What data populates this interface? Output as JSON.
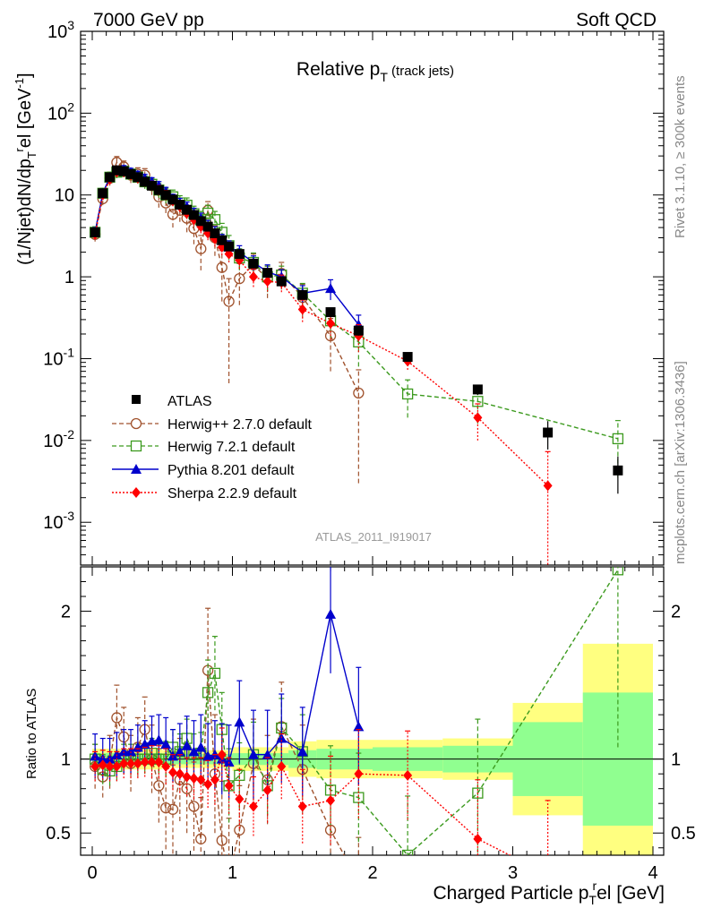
{
  "header": {
    "left": "7000 GeV pp",
    "right": "Soft QCD"
  },
  "side_labels": {
    "rivet": "Rivet 3.1.10, ≥ 300k events",
    "mcplots": "mcplots.cern.ch [arXiv:1306.3436]"
  },
  "chart_data": {
    "type": "scatter",
    "title": "Relative p",
    "title_sub": "T",
    "title_suffix": " (track jets)",
    "analysis_label": "ATLAS_2011_I919017",
    "ylabel_main": "(1/Njet)dN/dp",
    "ylabel_sub1": "T",
    "ylabel_sup1": "r",
    "ylabel_mid": "el [GeV",
    "ylabel_sup2": "-1",
    "ylabel_end": "]",
    "ylabel_ratio": "Ratio to ATLAS",
    "xlabel_main": "Charged Particle p",
    "xlabel_sub": "T",
    "xlabel_sup": "r",
    "xlabel_end": "el [GeV]",
    "xlim": [
      -0.1,
      4.1
    ],
    "ylim": [
      0.0003,
      1000
    ],
    "yscale": "log",
    "ratio_ylim": [
      0.35,
      2.3
    ],
    "x_ticks": [
      {
        "v": 0,
        "label": "0"
      },
      {
        "v": 1,
        "label": "1"
      },
      {
        "v": 2,
        "label": "2"
      },
      {
        "v": 3,
        "label": "3"
      },
      {
        "v": 4,
        "label": "4"
      }
    ],
    "y_ticks": [
      {
        "v": 0.001,
        "base": "10",
        "exp": "-3"
      },
      {
        "v": 0.01,
        "base": "10",
        "exp": "-2"
      },
      {
        "v": 0.1,
        "base": "10",
        "exp": "-1"
      },
      {
        "v": 1,
        "base": "1",
        "exp": ""
      },
      {
        "v": 10,
        "base": "10",
        "exp": ""
      },
      {
        "v": 100,
        "base": "10",
        "exp": "2"
      },
      {
        "v": 1000,
        "base": "10",
        "exp": "3"
      }
    ],
    "ratio_ticks": [
      {
        "v": 0.5,
        "label": "0.5"
      },
      {
        "v": 1,
        "label": "1"
      },
      {
        "v": 2,
        "label": "2"
      }
    ],
    "legend": {
      "position": "bottom-left"
    },
    "data_bins": [
      {
        "x": 0.02,
        "y": 3.5,
        "lo": 0.0,
        "hi": 0.04,
        "rel": 0.08
      },
      {
        "x": 0.075,
        "y": 10.5,
        "lo": 0.05,
        "hi": 0.1,
        "rel": 0.07
      },
      {
        "x": 0.125,
        "y": 16.5,
        "lo": 0.1,
        "hi": 0.15,
        "rel": 0.06
      },
      {
        "x": 0.175,
        "y": 20.0,
        "lo": 0.15,
        "hi": 0.2,
        "rel": 0.06
      },
      {
        "x": 0.225,
        "y": 19.5,
        "lo": 0.2,
        "hi": 0.25,
        "rel": 0.06
      },
      {
        "x": 0.275,
        "y": 18.0,
        "lo": 0.25,
        "hi": 0.3,
        "rel": 0.06
      },
      {
        "x": 0.325,
        "y": 16.5,
        "lo": 0.3,
        "hi": 0.35,
        "rel": 0.06
      },
      {
        "x": 0.375,
        "y": 14.5,
        "lo": 0.35,
        "hi": 0.4,
        "rel": 0.06
      },
      {
        "x": 0.425,
        "y": 13.0,
        "lo": 0.4,
        "hi": 0.45,
        "rel": 0.06
      },
      {
        "x": 0.475,
        "y": 11.5,
        "lo": 0.45,
        "hi": 0.5,
        "rel": 0.07
      },
      {
        "x": 0.525,
        "y": 10.0,
        "lo": 0.5,
        "hi": 0.55,
        "rel": 0.07
      },
      {
        "x": 0.575,
        "y": 8.8,
        "lo": 0.55,
        "hi": 0.6,
        "rel": 0.07
      },
      {
        "x": 0.625,
        "y": 7.6,
        "lo": 0.6,
        "hi": 0.65,
        "rel": 0.07
      },
      {
        "x": 0.675,
        "y": 6.6,
        "lo": 0.65,
        "hi": 0.7,
        "rel": 0.07
      },
      {
        "x": 0.725,
        "y": 5.7,
        "lo": 0.7,
        "hi": 0.75,
        "rel": 0.07
      },
      {
        "x": 0.775,
        "y": 4.8,
        "lo": 0.75,
        "hi": 0.8,
        "rel": 0.07
      },
      {
        "x": 0.825,
        "y": 4.1,
        "lo": 0.8,
        "hi": 0.85,
        "rel": 0.08
      },
      {
        "x": 0.875,
        "y": 3.4,
        "lo": 0.85,
        "hi": 0.9,
        "rel": 0.08
      },
      {
        "x": 0.925,
        "y": 2.8,
        "lo": 0.9,
        "hi": 0.95,
        "rel": 0.08
      },
      {
        "x": 0.975,
        "y": 2.35,
        "lo": 0.95,
        "hi": 1.0,
        "rel": 0.08
      },
      {
        "x": 1.05,
        "y": 1.9,
        "lo": 1.0,
        "hi": 1.1,
        "rel": 0.09
      },
      {
        "x": 1.15,
        "y": 1.45,
        "lo": 1.1,
        "hi": 1.2,
        "rel": 0.09
      },
      {
        "x": 1.25,
        "y": 1.12,
        "lo": 1.2,
        "hi": 1.3,
        "rel": 0.1
      },
      {
        "x": 1.35,
        "y": 0.88,
        "lo": 1.3,
        "hi": 1.4,
        "rel": 0.11
      },
      {
        "x": 1.5,
        "y": 0.6,
        "lo": 1.4,
        "hi": 1.6,
        "rel": 0.12
      },
      {
        "x": 1.7,
        "y": 0.37,
        "lo": 1.6,
        "hi": 1.8,
        "rel": 0.12
      },
      {
        "x": 1.9,
        "y": 0.22,
        "lo": 1.8,
        "hi": 2.0,
        "rel": 0.13
      },
      {
        "x": 2.25,
        "y": 0.105,
        "lo": 2.0,
        "hi": 2.5,
        "rel": 0.13
      },
      {
        "x": 2.75,
        "y": 0.042,
        "lo": 2.5,
        "hi": 3.0,
        "rel": 0.14
      },
      {
        "x": 3.25,
        "y": 0.0125,
        "lo": 3.0,
        "hi": 3.5,
        "rel": 0.38
      },
      {
        "x": 3.75,
        "y": 0.0043,
        "lo": 3.5,
        "hi": 4.0,
        "rel": 0.48
      }
    ],
    "ratio_bands": [
      {
        "lo": 0.0,
        "hi": 0.5,
        "inner": 0.04,
        "outer": 0.07
      },
      {
        "lo": 0.5,
        "hi": 1.0,
        "inner": 0.035,
        "outer": 0.06
      },
      {
        "lo": 1.0,
        "hi": 1.4,
        "inner": 0.04,
        "outer": 0.08
      },
      {
        "lo": 1.4,
        "hi": 1.6,
        "inner": 0.06,
        "outer": 0.12
      },
      {
        "lo": 1.6,
        "hi": 2.0,
        "inner": 0.07,
        "outer": 0.13
      },
      {
        "lo": 2.0,
        "hi": 2.5,
        "inner": 0.08,
        "outer": 0.13
      },
      {
        "lo": 2.5,
        "hi": 3.0,
        "inner": 0.09,
        "outer": 0.14
      },
      {
        "lo": 3.0,
        "hi": 3.5,
        "inner": 0.25,
        "outer": 0.38
      },
      {
        "lo": 3.5,
        "hi": 4.0,
        "inner": 0.45,
        "outer": 0.78
      }
    ],
    "series": [
      {
        "name": "ATLAS",
        "marker": "square",
        "color": "#000000",
        "dash": ""
      },
      {
        "name": "Herwig++ 2.7.0 default",
        "marker": "open-circle",
        "color": "#a0522d",
        "dash": "5,3",
        "x": [
          0.02,
          0.075,
          0.125,
          0.175,
          0.225,
          0.275,
          0.325,
          0.375,
          0.425,
          0.475,
          0.525,
          0.575,
          0.625,
          0.675,
          0.725,
          0.775,
          0.825,
          0.875,
          0.925,
          0.975,
          1.05,
          1.15,
          1.25,
          1.35,
          1.5,
          1.7,
          1.9
        ],
        "y": [
          3.3,
          9.0,
          16.0,
          25.0,
          22.0,
          17.5,
          18.0,
          17.5,
          13.0,
          9.5,
          8.0,
          5.8,
          6.5,
          5.2,
          3.9,
          2.2,
          6.5,
          3.0,
          1.3,
          0.5,
          0.95,
          1.4,
          0.95,
          1.1,
          0.56,
          0.19,
          0.038
        ],
        "err": [
          0.6,
          1.5,
          3.0,
          4.5,
          4.0,
          3.5,
          3.5,
          3.5,
          3.0,
          2.5,
          2.0,
          1.8,
          1.8,
          1.7,
          1.4,
          1.0,
          1.8,
          1.2,
          0.8,
          0.45,
          0.5,
          0.5,
          0.4,
          0.4,
          0.25,
          0.12,
          0.035
        ],
        "ratio": [
          0.95,
          0.88,
          0.98,
          1.28,
          1.15,
          0.97,
          1.08,
          1.2,
          1.0,
          0.82,
          0.67,
          0.66,
          0.86,
          0.8,
          0.68,
          0.46,
          1.6,
          0.9,
          0.45,
          0.2,
          0.52,
          0.97,
          0.86,
          1.22,
          0.93,
          0.52,
          0.17
        ],
        "ratio_err": [
          0.15,
          0.14,
          0.18,
          0.22,
          0.2,
          0.19,
          0.2,
          0.22,
          0.23,
          0.25,
          0.28,
          0.3,
          0.28,
          0.3,
          0.3,
          0.28,
          0.42,
          0.4,
          0.4,
          0.4,
          0.3,
          0.3,
          0.3,
          0.3,
          0.3,
          0.3,
          0.3
        ]
      },
      {
        "name": "Herwig 7.2.1 default",
        "marker": "open-square",
        "color": "#3c9a1e",
        "dash": "5,3",
        "x": [
          0.02,
          0.075,
          0.125,
          0.175,
          0.225,
          0.275,
          0.325,
          0.375,
          0.425,
          0.475,
          0.525,
          0.575,
          0.625,
          0.675,
          0.725,
          0.775,
          0.825,
          0.875,
          0.925,
          0.975,
          1.05,
          1.15,
          1.25,
          1.35,
          1.5,
          1.7,
          1.9,
          2.25,
          2.75,
          3.75
        ],
        "y": [
          3.5,
          10.5,
          16.5,
          19.0,
          19.5,
          18.0,
          16.5,
          14.5,
          13.5,
          11.5,
          10.0,
          9.5,
          8.0,
          7.5,
          5.9,
          5.0,
          6.0,
          5.0,
          3.5,
          2.4,
          1.7,
          1.5,
          1.0,
          1.05,
          0.63,
          0.29,
          0.16,
          0.037,
          0.03,
          0.0105
        ],
        "err": [
          0.6,
          1.6,
          2.5,
          3.0,
          3.0,
          3.0,
          2.8,
          2.6,
          2.5,
          2.3,
          2.1,
          2.0,
          1.8,
          1.7,
          1.4,
          1.3,
          1.5,
          1.3,
          1.0,
          0.8,
          0.5,
          0.45,
          0.35,
          0.3,
          0.2,
          0.12,
          0.08,
          0.018,
          0.014,
          0.007
        ],
        "ratio": [
          1.0,
          0.93,
          0.92,
          0.95,
          1.0,
          1.0,
          1.0,
          1.0,
          1.04,
          1.0,
          1.0,
          1.08,
          1.05,
          1.14,
          1.03,
          1.04,
          1.45,
          1.58,
          1.2,
          0.82,
          0.89,
          1.03,
          0.82,
          1.21,
          1.05,
          0.79,
          0.74,
          0.35,
          0.77,
          2.28
        ],
        "ratio_err": [
          0.1,
          0.1,
          0.1,
          0.1,
          0.1,
          0.1,
          0.1,
          0.1,
          0.1,
          0.1,
          0.12,
          0.12,
          0.12,
          0.13,
          0.14,
          0.14,
          0.22,
          0.25,
          0.25,
          0.25,
          0.22,
          0.22,
          0.2,
          0.2,
          0.25,
          0.3,
          0.3,
          0.4,
          0.5,
          1.2
        ]
      },
      {
        "name": "Pythia 8.201 default",
        "marker": "triangle",
        "color": "#0000cc",
        "dash": "",
        "x": [
          0.02,
          0.075,
          0.125,
          0.175,
          0.225,
          0.275,
          0.325,
          0.375,
          0.425,
          0.475,
          0.525,
          0.575,
          0.625,
          0.675,
          0.725,
          0.775,
          0.825,
          0.875,
          0.925,
          0.975,
          1.05,
          1.15,
          1.25,
          1.35,
          1.5,
          1.7,
          1.9
        ],
        "y": [
          3.5,
          10.5,
          16.5,
          20.0,
          20.5,
          19.0,
          17.5,
          16.0,
          14.5,
          13.0,
          11.0,
          9.0,
          8.0,
          7.2,
          6.0,
          5.2,
          4.2,
          3.5,
          2.8,
          2.3,
          2.0,
          1.5,
          1.15,
          1.0,
          0.63,
          0.72,
          0.26
        ],
        "err": [
          0.5,
          1.2,
          2.0,
          2.4,
          2.4,
          2.2,
          2.0,
          1.9,
          1.8,
          1.6,
          1.4,
          1.2,
          1.1,
          1.0,
          0.9,
          0.8,
          0.7,
          0.6,
          0.5,
          0.45,
          0.4,
          0.3,
          0.25,
          0.22,
          0.15,
          0.2,
          0.08
        ],
        "ratio": [
          1.02,
          1.0,
          1.0,
          1.03,
          1.05,
          1.05,
          1.08,
          1.1,
          1.12,
          1.13,
          1.1,
          1.02,
          1.05,
          1.09,
          1.05,
          1.08,
          1.02,
          1.03,
          1.0,
          0.98,
          1.25,
          1.03,
          1.03,
          1.14,
          1.05,
          1.98,
          1.22
        ],
        "ratio_err": [
          0.15,
          0.14,
          0.14,
          0.15,
          0.15,
          0.15,
          0.15,
          0.16,
          0.17,
          0.17,
          0.18,
          0.18,
          0.19,
          0.2,
          0.21,
          0.22,
          0.22,
          0.23,
          0.24,
          0.25,
          0.28,
          0.3,
          0.3,
          0.3,
          0.3,
          0.4,
          0.4
        ]
      },
      {
        "name": "Sherpa 2.2.9 default",
        "marker": "diamond",
        "color": "#ff0000",
        "dash": "2,2",
        "x": [
          0.02,
          0.075,
          0.125,
          0.175,
          0.225,
          0.275,
          0.325,
          0.375,
          0.425,
          0.475,
          0.525,
          0.575,
          0.625,
          0.675,
          0.725,
          0.775,
          0.825,
          0.875,
          0.925,
          0.975,
          1.05,
          1.15,
          1.25,
          1.35,
          1.5,
          1.7,
          1.9,
          2.25,
          2.75,
          3.25
        ],
        "y": [
          3.3,
          10.0,
          15.5,
          19.0,
          19.0,
          17.5,
          16.0,
          14.5,
          13.0,
          11.5,
          10.0,
          8.5,
          7.2,
          6.0,
          5.0,
          4.1,
          3.4,
          2.9,
          2.3,
          1.9,
          1.6,
          1.0,
          0.88,
          0.85,
          0.4,
          0.27,
          0.19,
          0.093,
          0.019,
          0.0028
        ],
        "err": [
          0.4,
          1.0,
          1.8,
          2.1,
          2.1,
          2.0,
          1.9,
          1.8,
          1.7,
          1.6,
          1.4,
          1.2,
          1.0,
          0.9,
          0.8,
          0.7,
          0.6,
          0.55,
          0.45,
          0.4,
          0.35,
          0.25,
          0.22,
          0.2,
          0.12,
          0.1,
          0.07,
          0.02,
          0.009,
          0.0045
        ],
        "ratio": [
          0.95,
          0.96,
          0.95,
          0.95,
          0.97,
          0.97,
          0.97,
          0.98,
          0.98,
          0.98,
          0.95,
          0.91,
          0.9,
          0.88,
          0.87,
          0.86,
          0.83,
          0.86,
          1.03,
          0.82,
          0.73,
          0.68,
          0.79,
          0.95,
          0.68,
          0.72,
          0.9,
          0.89,
          0.46,
          0.22
        ],
        "ratio_err": [
          0.1,
          0.1,
          0.1,
          0.1,
          0.1,
          0.1,
          0.1,
          0.1,
          0.11,
          0.11,
          0.12,
          0.12,
          0.13,
          0.13,
          0.14,
          0.15,
          0.16,
          0.17,
          0.18,
          0.19,
          0.2,
          0.2,
          0.22,
          0.22,
          0.25,
          0.3,
          0.3,
          0.3,
          0.4,
          0.5
        ]
      }
    ]
  }
}
